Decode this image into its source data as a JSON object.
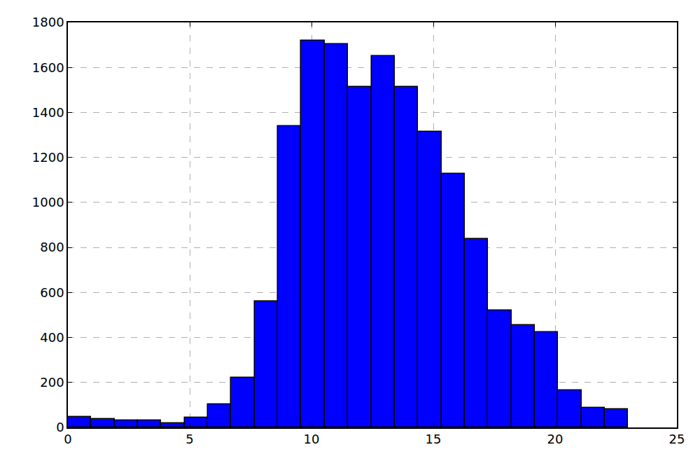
{
  "chart_data": {
    "type": "histogram",
    "bins": [
      0,
      0.958,
      1.917,
      2.875,
      3.833,
      4.792,
      5.75,
      6.708,
      7.667,
      8.625,
      9.583,
      10.542,
      11.5,
      12.458,
      13.417,
      14.375,
      15.333,
      16.292,
      17.25,
      18.208,
      19.167,
      20.125,
      21.083,
      22.042,
      23
    ],
    "values": [
      47,
      38,
      30,
      30,
      20,
      45,
      103,
      222,
      561,
      1338,
      1718,
      1703,
      1513,
      1652,
      1513,
      1314,
      1127,
      838,
      521,
      455,
      424,
      166,
      88,
      80
    ],
    "color": "#0000ff",
    "xlim": [
      0,
      25
    ],
    "xticks": [
      0,
      5,
      10,
      15,
      20,
      25
    ],
    "ylim": [
      0,
      1800
    ],
    "yticks": [
      0,
      200,
      400,
      600,
      800,
      1000,
      1200,
      1400,
      1600,
      1800
    ],
    "grid": true
  }
}
